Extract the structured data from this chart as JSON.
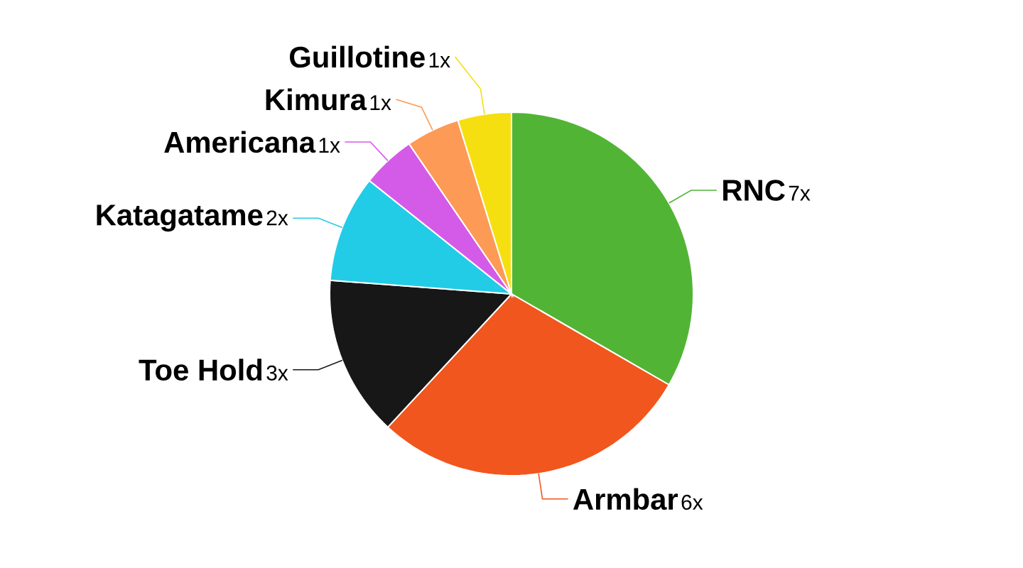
{
  "chart_data": {
    "type": "pie",
    "categories": [
      "RNC",
      "Armbar",
      "Toe Hold",
      "Katagatame",
      "Americana",
      "Kimura",
      "Guillotine"
    ],
    "values": [
      7,
      6,
      3,
      2,
      1,
      1,
      1
    ],
    "value_labels": [
      "7x",
      "6x",
      "3x",
      "2x",
      "1x",
      "1x",
      "1x"
    ],
    "colors": [
      "#52b435",
      "#f0561d",
      "#171717",
      "#22cce6",
      "#d45be8",
      "#fd9a56",
      "#f5df10"
    ]
  }
}
